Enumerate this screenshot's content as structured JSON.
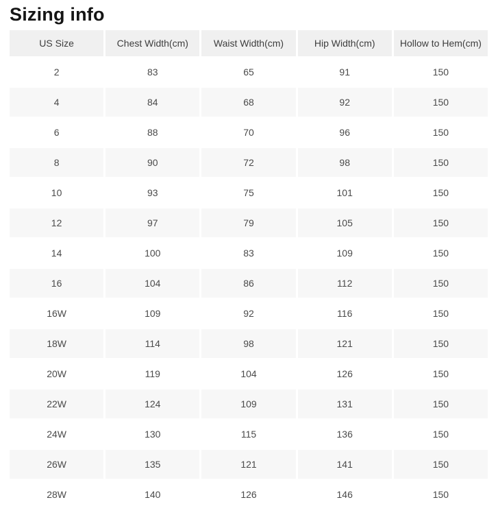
{
  "page": {
    "title": "Sizing info"
  },
  "table": {
    "columns": [
      "US Size",
      "Chest Width(cm)",
      "Waist Width(cm)",
      "Hip Width(cm)",
      "Hollow to Hem(cm)"
    ],
    "rows": [
      [
        "2",
        "83",
        "65",
        "91",
        "150"
      ],
      [
        "4",
        "84",
        "68",
        "92",
        "150"
      ],
      [
        "6",
        "88",
        "70",
        "96",
        "150"
      ],
      [
        "8",
        "90",
        "72",
        "98",
        "150"
      ],
      [
        "10",
        "93",
        "75",
        "101",
        "150"
      ],
      [
        "12",
        "97",
        "79",
        "105",
        "150"
      ],
      [
        "14",
        "100",
        "83",
        "109",
        "150"
      ],
      [
        "16",
        "104",
        "86",
        "112",
        "150"
      ],
      [
        "16W",
        "109",
        "92",
        "116",
        "150"
      ],
      [
        "18W",
        "114",
        "98",
        "121",
        "150"
      ],
      [
        "20W",
        "119",
        "104",
        "126",
        "150"
      ],
      [
        "22W",
        "124",
        "109",
        "131",
        "150"
      ],
      [
        "24W",
        "130",
        "115",
        "136",
        "150"
      ],
      [
        "26W",
        "135",
        "121",
        "141",
        "150"
      ],
      [
        "28W",
        "140",
        "126",
        "146",
        "150"
      ]
    ]
  },
  "colors": {
    "title_color": "#151515",
    "header_bg": "#f0f0f0",
    "header_text": "#3d3d3d",
    "row_alt_bg": "#f7f7f7",
    "cell_text": "#4a4a4a"
  }
}
